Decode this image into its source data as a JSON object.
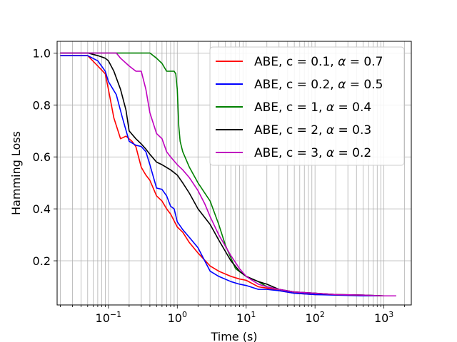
{
  "chart_data": {
    "type": "line",
    "xlabel": "Time (s)",
    "ylabel": "Hamming Loss",
    "xscale": "log",
    "xlim": [
      0.018,
      2500
    ],
    "ylim": [
      0.03,
      1.045
    ],
    "grid": true,
    "legend_position": "top-right",
    "x_ticks": [
      {
        "value": 0.1,
        "base": "10",
        "exp": "−1"
      },
      {
        "value": 1,
        "base": "10",
        "exp": "0"
      },
      {
        "value": 10,
        "base": "10",
        "exp": "1"
      },
      {
        "value": 100,
        "base": "10",
        "exp": "2"
      },
      {
        "value": 1000,
        "base": "10",
        "exp": "3"
      }
    ],
    "y_ticks": [
      {
        "value": 0.2,
        "label": "0.2"
      },
      {
        "value": 0.4,
        "label": "0.4"
      },
      {
        "value": 0.6,
        "label": "0.6"
      },
      {
        "value": 0.8,
        "label": "0.8"
      },
      {
        "value": 1.0,
        "label": "1.0"
      }
    ],
    "series": [
      {
        "name": "ABE, c = 0.1, α = 0.7",
        "legend_prefix": "ABE, c = 0.1, ",
        "legend_alpha": "0.7",
        "color": "#ff0000",
        "x": [
          0.02,
          0.05,
          0.07,
          0.09,
          0.1,
          0.12,
          0.15,
          0.18,
          0.22,
          0.25,
          0.3,
          0.35,
          0.4,
          0.5,
          0.6,
          0.7,
          0.8,
          1.0,
          1.2,
          1.5,
          2.0,
          3.0,
          4.0,
          6.0,
          8.0,
          10,
          15,
          20,
          30,
          50,
          100,
          200,
          500,
          1000,
          1500
        ],
        "y": [
          0.99,
          0.99,
          0.95,
          0.92,
          0.86,
          0.75,
          0.67,
          0.68,
          0.66,
          0.64,
          0.56,
          0.53,
          0.51,
          0.45,
          0.43,
          0.4,
          0.38,
          0.33,
          0.31,
          0.27,
          0.23,
          0.18,
          0.16,
          0.14,
          0.13,
          0.125,
          0.1,
          0.095,
          0.085,
          0.075,
          0.07,
          0.07,
          0.065,
          0.065,
          0.065
        ]
      },
      {
        "name": "ABE, c = 0.2, α = 0.5",
        "legend_prefix": "ABE, c = 0.2, ",
        "legend_alpha": "0.5",
        "color": "#0000ff",
        "x": [
          0.02,
          0.05,
          0.07,
          0.09,
          0.1,
          0.13,
          0.16,
          0.2,
          0.25,
          0.3,
          0.35,
          0.4,
          0.5,
          0.6,
          0.7,
          0.8,
          0.9,
          1.0,
          1.2,
          1.5,
          2.0,
          2.5,
          3.0,
          4.0,
          6.0,
          8.0,
          10,
          15,
          20,
          30,
          50,
          100,
          200,
          500,
          1000,
          1500
        ],
        "y": [
          0.99,
          0.99,
          0.97,
          0.93,
          0.89,
          0.84,
          0.75,
          0.66,
          0.645,
          0.64,
          0.62,
          0.57,
          0.48,
          0.475,
          0.45,
          0.41,
          0.4,
          0.35,
          0.32,
          0.29,
          0.25,
          0.2,
          0.16,
          0.14,
          0.12,
          0.11,
          0.105,
          0.09,
          0.09,
          0.085,
          0.075,
          0.07,
          0.068,
          0.065,
          0.065,
          0.065
        ]
      },
      {
        "name": "ABE, c = 1, α = 0.4",
        "legend_prefix": "ABE, c = 1, ",
        "legend_alpha": "0.4",
        "color": "#008000",
        "x": [
          0.02,
          0.1,
          0.2,
          0.3,
          0.4,
          0.5,
          0.6,
          0.7,
          0.9,
          0.95,
          1.0,
          1.05,
          1.1,
          1.2,
          1.5,
          2.0,
          3.0,
          4.0,
          5.0,
          7.0,
          10,
          15,
          20,
          30,
          50,
          100,
          200,
          500,
          1000,
          1500
        ],
        "y": [
          1.0,
          1.0,
          1.0,
          1.0,
          1.0,
          0.98,
          0.96,
          0.93,
          0.93,
          0.92,
          0.86,
          0.72,
          0.66,
          0.62,
          0.56,
          0.5,
          0.43,
          0.34,
          0.26,
          0.17,
          0.14,
          0.12,
          0.1,
          0.09,
          0.08,
          0.075,
          0.07,
          0.068,
          0.065,
          0.065
        ]
      },
      {
        "name": "ABE, c = 2, α = 0.3",
        "legend_prefix": "ABE, c = 2, ",
        "legend_alpha": "0.3",
        "color": "#000000",
        "x": [
          0.02,
          0.05,
          0.07,
          0.09,
          0.1,
          0.12,
          0.15,
          0.18,
          0.2,
          0.25,
          0.3,
          0.35,
          0.4,
          0.5,
          0.6,
          0.8,
          1.0,
          1.2,
          1.5,
          2.0,
          3.0,
          4.0,
          6.0,
          8.0,
          10,
          15,
          20,
          30,
          50,
          100,
          200,
          500,
          1000,
          1500
        ],
        "y": [
          1.0,
          1.0,
          0.99,
          0.98,
          0.97,
          0.93,
          0.86,
          0.78,
          0.7,
          0.67,
          0.65,
          0.63,
          0.61,
          0.58,
          0.57,
          0.55,
          0.53,
          0.5,
          0.46,
          0.4,
          0.34,
          0.28,
          0.2,
          0.16,
          0.14,
          0.12,
          0.11,
          0.09,
          0.08,
          0.075,
          0.07,
          0.068,
          0.065,
          0.065
        ]
      },
      {
        "name": "ABE, c = 3, α = 0.2",
        "legend_prefix": "ABE, c = 3, ",
        "legend_alpha": "0.2",
        "color": "#bf00bf",
        "x": [
          0.02,
          0.1,
          0.13,
          0.15,
          0.2,
          0.25,
          0.3,
          0.35,
          0.4,
          0.5,
          0.6,
          0.7,
          0.8,
          1.0,
          1.2,
          1.5,
          2.0,
          2.5,
          3.0,
          4.0,
          6.0,
          8.0,
          10,
          15,
          20,
          30,
          50,
          100,
          200,
          500,
          1000,
          1500
        ],
        "y": [
          1.0,
          1.0,
          1.0,
          0.98,
          0.95,
          0.93,
          0.93,
          0.86,
          0.77,
          0.69,
          0.67,
          0.62,
          0.6,
          0.57,
          0.55,
          0.52,
          0.47,
          0.42,
          0.37,
          0.3,
          0.22,
          0.17,
          0.14,
          0.11,
          0.1,
          0.09,
          0.08,
          0.075,
          0.07,
          0.068,
          0.065,
          0.065
        ]
      }
    ]
  }
}
